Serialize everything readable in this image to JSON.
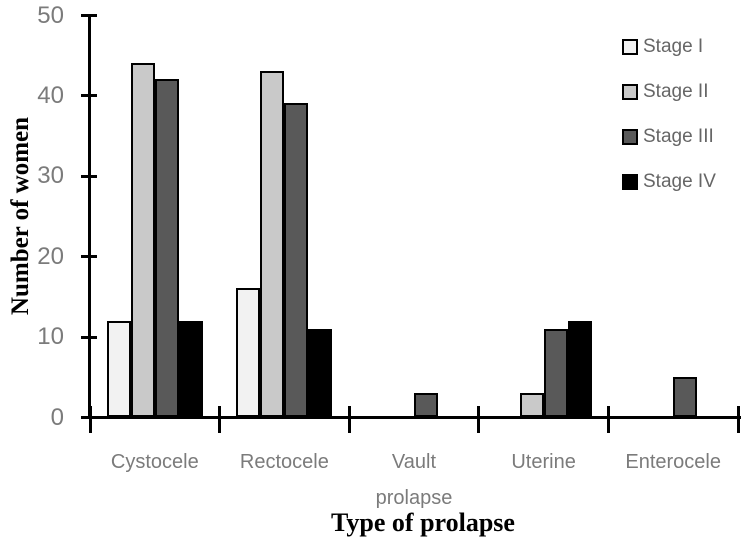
{
  "figure": {
    "background": "#ffffff"
  },
  "chart_data": {
    "type": "bar",
    "title": "",
    "xlabel": "Type of prolapse",
    "ylabel": "Number of women",
    "categories": [
      "Cystocele",
      "Rectocele",
      "Vault prolapse",
      "Uterine",
      "Enterocele"
    ],
    "series": [
      {
        "name": "Stage I",
        "fill": "#f2f2f2",
        "values": [
          12,
          16,
          0,
          0,
          0
        ]
      },
      {
        "name": "Stage II",
        "fill": "#c9c9c9",
        "values": [
          44,
          43,
          0,
          3,
          0
        ]
      },
      {
        "name": "Stage III",
        "fill": "#595959",
        "values": [
          42,
          39,
          3,
          11,
          5
        ]
      },
      {
        "name": "Stage IV",
        "fill": "#000000",
        "values": [
          12,
          11,
          0,
          12,
          0
        ]
      }
    ],
    "ylim": [
      0,
      50
    ],
    "yticks": [
      0,
      10,
      20,
      30,
      40,
      50
    ],
    "grid": "off",
    "legend_position": "top-right",
    "bar_outline": "#000000"
  },
  "colors": {
    "axis": "#000000",
    "tick_label": "#7b7b7b",
    "category_label": "#7b7b7b",
    "legend_text": "#666666",
    "axis_title": "#000000"
  }
}
